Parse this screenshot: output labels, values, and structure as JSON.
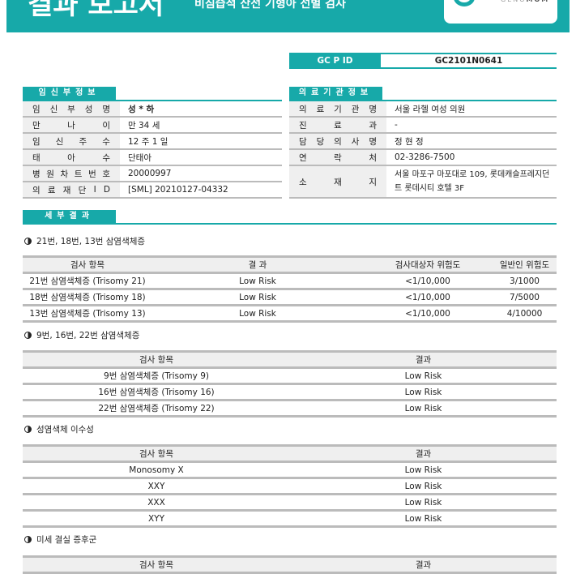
{
  "header": {
    "title": "결과 보고서",
    "subtitle": "비침습적 산전 기형아 선별 검사",
    "logo_text": "GENOMOM"
  },
  "gcpid": {
    "label": "GC P ID",
    "value": "GC2101N0641"
  },
  "patient": {
    "title": "임신부정보",
    "rows": [
      {
        "key": "임신부성명",
        "value": "성 * 하"
      },
      {
        "key": "만나이",
        "value": "만 34 세"
      },
      {
        "key": "임신주수",
        "value": "12 주  1 일"
      },
      {
        "key": "태아수",
        "value": "단태아"
      },
      {
        "key": "병원차트번호",
        "value": "20000997"
      },
      {
        "key": "의료재단ID",
        "value": "[SML] 20210127-04332"
      }
    ]
  },
  "institution": {
    "title": "의료기관정보",
    "rows": [
      {
        "key": "의료기관명",
        "value": "서울 라헬 여성 의원"
      },
      {
        "key": "진료과",
        "value": "-"
      },
      {
        "key": "담당의사명",
        "value": "정 현 정"
      },
      {
        "key": "연락처",
        "value": "02-3286-7500"
      },
      {
        "key": "소재지",
        "value": "서울 마포구 마포대로 109, 롯데캐슬프레지던트 롯데시티 호텔 3F"
      }
    ]
  },
  "details_title": "세부결과",
  "sections": [
    {
      "title": "21번, 18번, 13번 삼염색체증",
      "headers": [
        "검사 항목",
        "결 과",
        "검사대상자 위험도",
        "일반인 위험도"
      ],
      "rows": [
        [
          "21번 삼염색체증 (Trisomy 21)",
          "Low Risk",
          "<1/10,000",
          "3/1000"
        ],
        [
          "18번 삼염색체증 (Trisomy 18)",
          "Low Risk",
          "<1/10,000",
          "7/5000"
        ],
        [
          "13번 삼염색체증 (Trisomy 13)",
          "Low Risk",
          "<1/10,000",
          "4/10000"
        ]
      ]
    },
    {
      "title": "9번, 16번, 22번 삼염색체증",
      "headers": [
        "검사 항목",
        "결과"
      ],
      "rows": [
        [
          "9번 삼염색체증 (Trisomy 9)",
          "Low Risk"
        ],
        [
          "16번 삼염색체증 (Trisomy 16)",
          "Low Risk"
        ],
        [
          "22번 삼염색체증 (Trisomy 22)",
          "Low Risk"
        ]
      ]
    },
    {
      "title": "성염색체 이수성",
      "headers": [
        "검사 항목",
        "결과"
      ],
      "rows": [
        [
          "Monosomy X",
          "Low Risk"
        ],
        [
          "XXY",
          "Low Risk"
        ],
        [
          "XXX",
          "Low Risk"
        ],
        [
          "XYY",
          "Low Risk"
        ]
      ]
    },
    {
      "title": "미세 결실 증후군",
      "headers": [
        "검사 항목",
        "결과"
      ],
      "rows": []
    }
  ],
  "colors": {
    "accent": "#17a9a9",
    "row_border": "#bbbbbb",
    "label_bg": "#efefef"
  }
}
